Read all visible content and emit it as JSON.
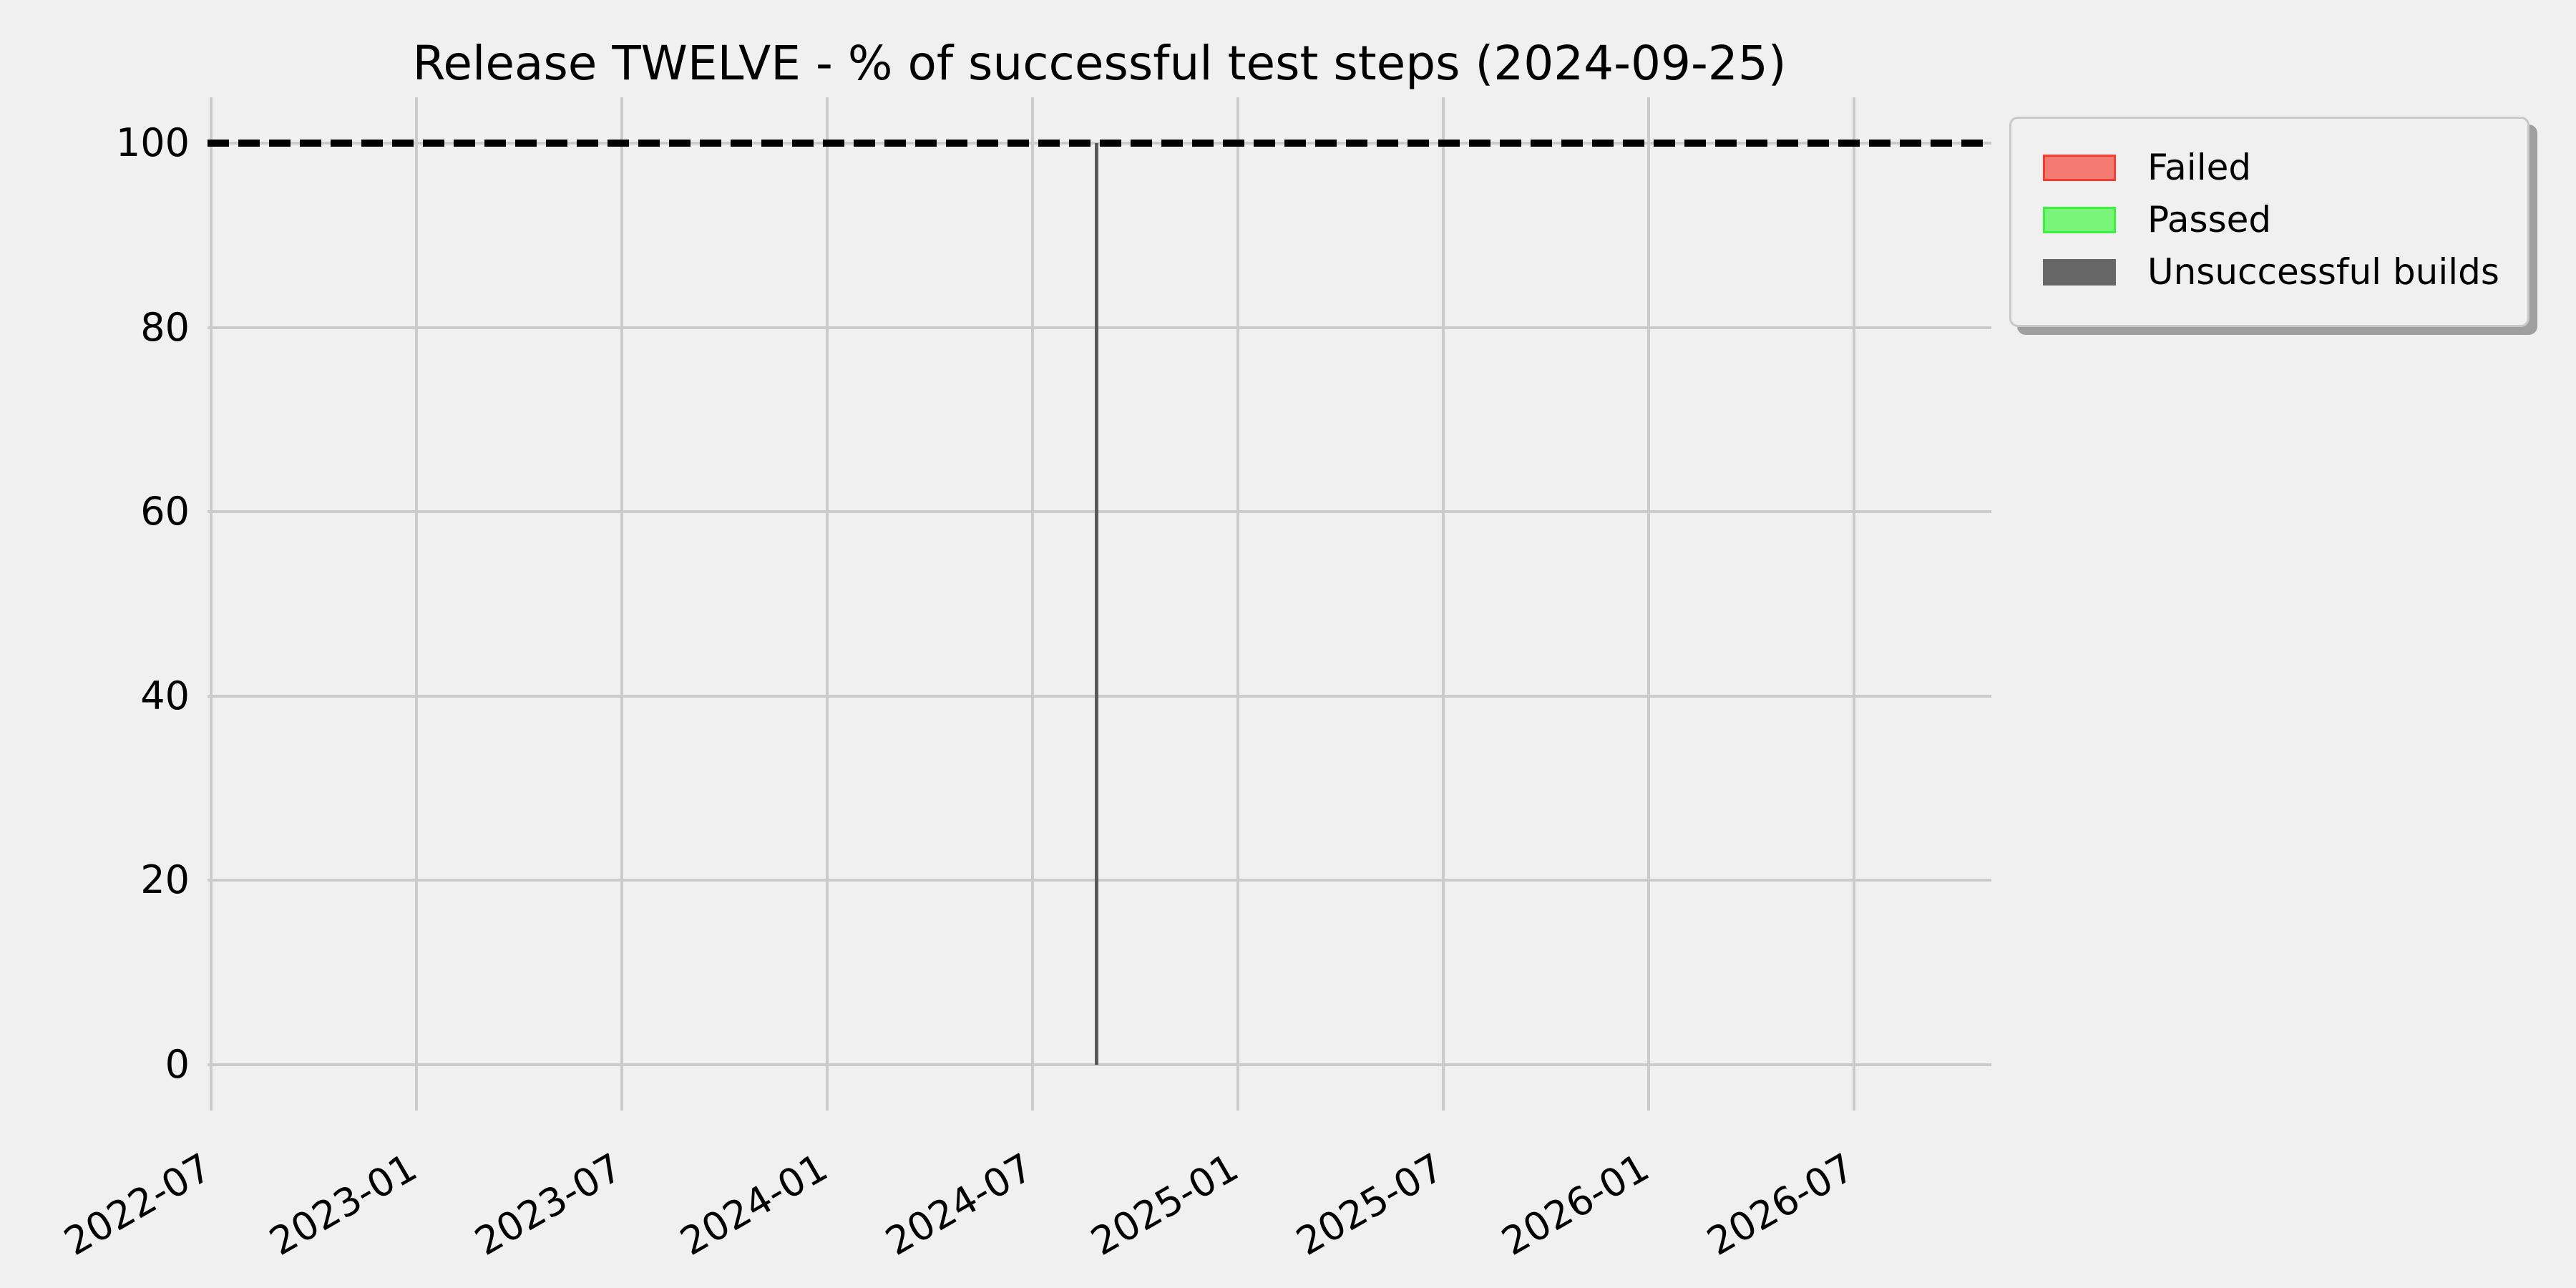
{
  "figure": {
    "background_color": "#f0f0f0",
    "grid_color": "#cbcbcb",
    "text_color": "#000000"
  },
  "chart_data": {
    "type": "bar",
    "title": "Release TWELVE - % of successful test steps (2024-09-25)",
    "xlabel": "",
    "ylabel": "",
    "ylim": [
      -5,
      105
    ],
    "grid": true,
    "x_tick_labels": [
      "2022-07",
      "2023-01",
      "2023-07",
      "2024-01",
      "2024-07",
      "2025-01",
      "2025-07",
      "2026-01",
      "2026-07"
    ],
    "y_ticks": [
      100,
      80,
      60,
      40,
      20,
      0
    ],
    "x_tick_rotation_deg": 30,
    "target_line": {
      "y": 100,
      "style": "dashed",
      "color": "#000000"
    },
    "series": [
      {
        "name": "Failed",
        "fill_color": "#f57a72",
        "edge_color": "#f93c30",
        "bars": []
      },
      {
        "name": "Passed",
        "fill_color": "#79f57a",
        "edge_color": "#3df23f",
        "bars": []
      },
      {
        "name": "Unsuccessful builds",
        "fill_color": "#676767",
        "edge_color": "#676767",
        "bars": [
          {
            "x": "2024-09",
            "value": 100,
            "x_fraction": 0.498
          }
        ]
      }
    ],
    "legend": {
      "position": "upper right",
      "entries": [
        "Failed",
        "Passed",
        "Unsuccessful builds"
      ]
    }
  }
}
